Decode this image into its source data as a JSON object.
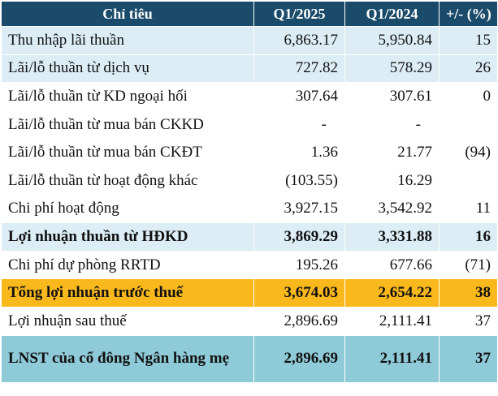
{
  "header": {
    "col_metric": "Chỉ tiêu",
    "col_q1_2025": "Q1/2025",
    "col_q1_2024": "Q1/2024",
    "col_change": "+/- (%)"
  },
  "rows": [
    {
      "label": "Thu nhập lãi thuần",
      "q1_2025": "6,863.17",
      "q1_2024": "5,950.84",
      "change": "15"
    },
    {
      "label": "Lãi/lỗ thuần từ dịch vụ",
      "q1_2025": "727.82",
      "q1_2024": "578.29",
      "change": "26"
    },
    {
      "label": "Lãi/lỗ thuần từ KD ngoại hối",
      "q1_2025": "307.64",
      "q1_2024": "307.61",
      "change": "0"
    },
    {
      "label": "Lãi/lỗ thuần từ mua bán CKKD",
      "q1_2025": "-",
      "q1_2024": "-",
      "change": ""
    },
    {
      "label": "Lãi/lỗ thuần từ mua bán CKĐT",
      "q1_2025": "1.36",
      "q1_2024": "21.77",
      "change": "(94)"
    },
    {
      "label": "Lãi/lỗ thuần từ hoạt động khác",
      "q1_2025": "(103.55)",
      "q1_2024": "16.29",
      "change": ""
    },
    {
      "label": "Chi phí hoạt động",
      "q1_2025": "3,927.15",
      "q1_2024": "3,542.92",
      "change": "11"
    },
    {
      "label": "Lợi nhuận thuần từ HĐKD",
      "q1_2025": "3,869.29",
      "q1_2024": "3,331.88",
      "change": "16"
    },
    {
      "label": "Chi phí dự phòng RRTD",
      "q1_2025": "195.26",
      "q1_2024": "677.66",
      "change": "(71)"
    },
    {
      "label": "Tổng lợi nhuận trước thuế",
      "q1_2025": "3,674.03",
      "q1_2024": "2,654.22",
      "change": "38"
    },
    {
      "label": "Lợi nhuận sau thuế",
      "q1_2025": "2,896.69",
      "q1_2024": "2,111.41",
      "change": "37"
    },
    {
      "label": "LNST của cổ đông Ngân hàng mẹ",
      "q1_2025": "2,896.69",
      "q1_2024": "2,111.41",
      "change": "37"
    }
  ],
  "colors": {
    "header_bg": "#1b4b6a",
    "row_light_blue": "#dcedf5",
    "row_orange": "#f9b81b",
    "row_teal": "#8ecad8",
    "negative_text": "#d11a1a"
  }
}
